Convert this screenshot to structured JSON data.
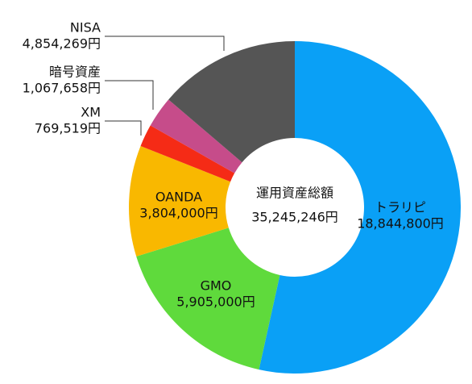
{
  "chart_data": {
    "type": "donut",
    "categories": [
      "トラリピ",
      "GMO",
      "OANDA",
      "XM",
      "暗号資産",
      "NISA"
    ],
    "values": [
      18844800,
      5905000,
      3804000,
      769519,
      1067658,
      4854269
    ],
    "value_labels": [
      "18,844,800円",
      "5,905,000円",
      "3,804,000円",
      "769,519円",
      "1,067,658円",
      "4,854,269円"
    ],
    "colors": [
      "#0aa0f6",
      "#5fda3c",
      "#f9b800",
      "#f52b16",
      "#c64c8a",
      "#555555"
    ],
    "center_title": "運用資産総額",
    "center_value": 35245246,
    "center_value_label": "35,245,246円"
  }
}
